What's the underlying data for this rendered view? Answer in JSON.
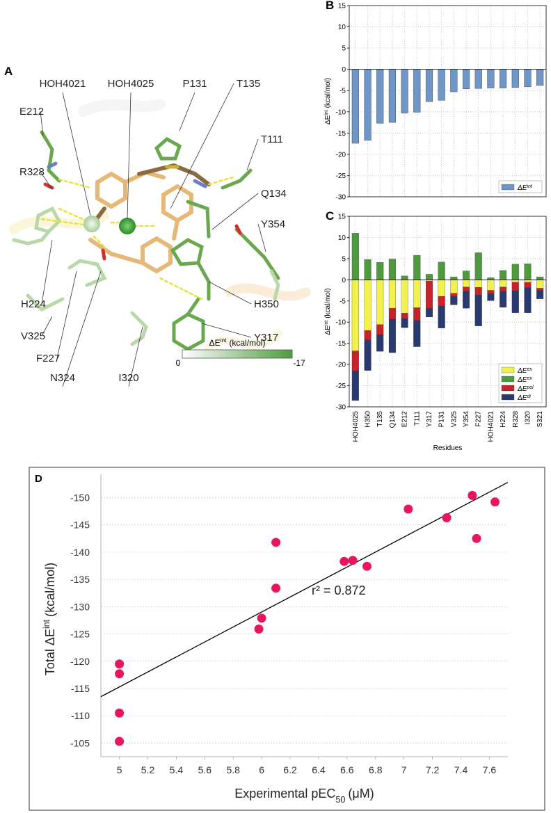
{
  "panel_a": {
    "label": "A",
    "labels": [
      "HOH4021",
      "HOH4025",
      "P131",
      "T135",
      "E212",
      "T111",
      "R328",
      "Q134",
      "Y354",
      "H224",
      "H350",
      "V325",
      "Y317",
      "F227",
      "N324",
      "I320"
    ],
    "colorbar": {
      "title": "ΔE",
      "title_sup": "int",
      "unit": "(kcal/mol)",
      "range": [
        0,
        -17
      ]
    }
  },
  "chart_data": [
    {
      "panel": "B",
      "type": "bar",
      "categories": [
        "HOH4025",
        "H350",
        "T135",
        "Q134",
        "E212",
        "T111",
        "Y317",
        "P131",
        "V325",
        "Y354",
        "F227",
        "HOH4021",
        "H224",
        "R328",
        "I320",
        "S321"
      ],
      "series": [
        {
          "name": "ΔE",
          "name_sup": "int",
          "color": "#7096c8",
          "values": [
            -17.4,
            -16.7,
            -12.7,
            -12.5,
            -10.3,
            -10.1,
            -7.6,
            -7.3,
            -5.3,
            -4.6,
            -4.5,
            -4.4,
            -4.4,
            -4.3,
            -4.1,
            -3.8
          ]
        }
      ],
      "ylim": [
        -30,
        15
      ],
      "yticks": [
        -30,
        -25,
        -20,
        -15,
        -10,
        -5,
        0,
        5,
        10,
        15
      ],
      "ylabel": "ΔE",
      "ylabel_sup": "int",
      "ylabel_unit": "(kcal/mol)",
      "grid": true,
      "legend": "lower right"
    },
    {
      "panel": "C",
      "type": "stacked_bar",
      "categories": [
        "HOH4025",
        "H350",
        "T135",
        "Q134",
        "E212",
        "T111",
        "Y317",
        "P131",
        "V325",
        "Y354",
        "F227",
        "HOH4021",
        "H224",
        "R328",
        "I320",
        "S321"
      ],
      "series": [
        {
          "name": "ΔE",
          "name_sup": "es",
          "color": "#f2f04c",
          "values": [
            -16.8,
            -12,
            -10.6,
            -6.7,
            -7.9,
            -6.6,
            -0.3,
            -3.9,
            -3.2,
            -1.7,
            -1.8,
            -2.5,
            -1.7,
            -0.6,
            -0.6,
            -2
          ]
        },
        {
          "name": "ΔE",
          "name_sup": "ex",
          "color": "#4f9a3f",
          "values": [
            11,
            4.8,
            4.1,
            4.9,
            0.9,
            5.8,
            1.3,
            4.2,
            0.7,
            2.1,
            6.4,
            0.5,
            2.2,
            3.7,
            3.8,
            0.7
          ]
        },
        {
          "name": "ΔE",
          "name_sup": "pol",
          "color": "#c8232a",
          "values": [
            -4.7,
            -2.2,
            -2.4,
            -2.6,
            -1.2,
            -3,
            -6.4,
            -2.3,
            -0.7,
            -1,
            -1.8,
            -0.8,
            -1,
            -2,
            -1.3,
            -0.5
          ]
        },
        {
          "name": "ΔE",
          "name_sup": "di",
          "color": "#2b3a6e",
          "values": [
            -7,
            -7.2,
            -3.9,
            -7.9,
            -2.2,
            -6.2,
            -2.1,
            -5.2,
            -2,
            -4,
            -7.3,
            -1.6,
            -3.8,
            -5.2,
            -5.9,
            -2
          ]
        }
      ],
      "ylim": [
        -30,
        15
      ],
      "yticks": [
        -30,
        -25,
        -20,
        -15,
        -10,
        -5,
        0,
        5,
        10,
        15
      ],
      "ylabel": "ΔE",
      "ylabel_sup": "int",
      "ylabel_unit": "(kcal/mol)",
      "xlabel": "Residues",
      "grid": true,
      "legend": "lower right"
    },
    {
      "panel": "D",
      "type": "scatter",
      "series": [
        {
          "color": "#e8175d",
          "x": [
            5,
            5,
            5,
            5,
            5.98,
            6.0,
            6.1,
            6.1,
            6.58,
            6.64,
            6.74,
            7.03,
            7.3,
            7.48,
            7.51,
            7.64
          ],
          "values": [
            -119.5,
            -117.7,
            -110.5,
            -105.3,
            -125.9,
            -127.9,
            -133.4,
            -141.8,
            -138.3,
            -138.5,
            -137.4,
            -147.9,
            -146.3,
            -150.4,
            -142.5,
            -149.2
          ]
        }
      ],
      "fit": {
        "color": "#000000",
        "x": [
          4.87,
          7.73
        ],
        "values": [
          -113.5,
          -152.8
        ]
      },
      "xlim": [
        4.87,
        7.73
      ],
      "ylim": [
        -102.5,
        -153
      ],
      "xticks": [
        5,
        5.2,
        5.4,
        5.6,
        5.8,
        6,
        6.2,
        6.4,
        6.6,
        6.8,
        7,
        7.2,
        7.4,
        7.6
      ],
      "yticks": [
        -150,
        -145,
        -140,
        -135,
        -130,
        -125,
        -120,
        -115,
        -110,
        -105
      ],
      "xlabel": "Experimental pEC",
      "xlabel_sub": "50",
      "xlabel_unit": "(μM)",
      "ylabel": "Total ΔE",
      "ylabel_sup": "int",
      "ylabel_unit": "(kcal/mol)",
      "annotation": "r² = 0.872",
      "grid": true
    }
  ]
}
